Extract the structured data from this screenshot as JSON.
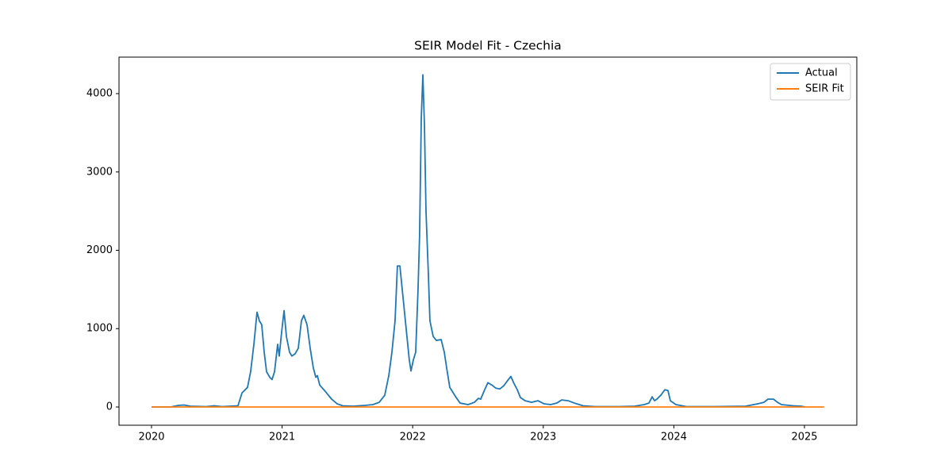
{
  "chart_data": {
    "type": "line",
    "title": "SEIR Model Fit - Czechia",
    "xlim": [
      2019.751,
      2025.401
    ],
    "xticks": [
      2020,
      2021,
      2022,
      2023,
      2024,
      2025
    ],
    "ylim": [
      -233,
      4466
    ],
    "yticks": [
      0,
      1000,
      2000,
      3000,
      4000
    ],
    "legend": "upper right",
    "series": [
      {
        "name": "Actual",
        "color": "#1f77b4",
        "x": [
          2020.0,
          2020.146,
          2020.207,
          2020.249,
          2020.298,
          2020.419,
          2020.48,
          2020.541,
          2020.662,
          2020.693,
          2020.735,
          2020.759,
          2020.784,
          2020.808,
          2020.826,
          2020.844,
          2020.863,
          2020.881,
          2020.905,
          2020.923,
          2020.942,
          2020.966,
          2020.978,
          2020.996,
          2021.015,
          2021.033,
          2021.057,
          2021.075,
          2021.1,
          2021.124,
          2021.148,
          2021.166,
          2021.191,
          2021.215,
          2021.239,
          2021.258,
          2021.27,
          2021.288,
          2021.33,
          2021.379,
          2021.422,
          2021.464,
          2021.543,
          2021.634,
          2021.695,
          2021.744,
          2021.786,
          2021.817,
          2021.841,
          2021.865,
          2021.883,
          2021.902,
          2021.92,
          2021.938,
          2021.956,
          2021.974,
          2021.987,
          2022.005,
          2022.023,
          2022.041,
          2022.053,
          2022.066,
          2022.078,
          2022.09,
          2022.102,
          2022.12,
          2022.132,
          2022.157,
          2022.181,
          2022.218,
          2022.242,
          2022.26,
          2022.284,
          2022.303,
          2022.333,
          2022.363,
          2022.424,
          2022.473,
          2022.503,
          2022.521,
          2022.546,
          2022.576,
          2022.606,
          2022.637,
          2022.667,
          2022.697,
          2022.728,
          2022.752,
          2022.776,
          2022.801,
          2022.825,
          2022.861,
          2022.91,
          2022.959,
          2023.007,
          2023.056,
          2023.104,
          2023.141,
          2023.19,
          2023.238,
          2023.305,
          2023.396,
          2023.578,
          2023.7,
          2023.773,
          2023.809,
          2023.834,
          2023.852,
          2023.87,
          2023.9,
          2023.931,
          2023.955,
          2023.973,
          2024.016,
          2024.095,
          2024.307,
          2024.55,
          2024.642,
          2024.69,
          2024.721,
          2024.763,
          2024.793,
          2024.824,
          2024.915,
          2024.976,
          2025.006
        ],
        "values": [
          0,
          0,
          20,
          25,
          10,
          5,
          15,
          5,
          15,
          180,
          250,
          450,
          800,
          1210,
          1100,
          1050,
          700,
          450,
          380,
          350,
          450,
          800,
          650,
          950,
          1230,
          900,
          700,
          650,
          680,
          750,
          1100,
          1170,
          1050,
          750,
          500,
          380,
          400,
          280,
          200,
          100,
          40,
          15,
          10,
          20,
          30,
          60,
          150,
          400,
          700,
          1100,
          1800,
          1800,
          1500,
          1200,
          900,
          600,
          460,
          600,
          700,
          1500,
          2200,
          3700,
          4240,
          3600,
          2500,
          1700,
          1100,
          900,
          850,
          860,
          700,
          500,
          250,
          200,
          120,
          50,
          30,
          60,
          110,
          100,
          200,
          310,
          280,
          240,
          230,
          270,
          340,
          390,
          300,
          220,
          120,
          80,
          60,
          80,
          40,
          30,
          50,
          90,
          80,
          50,
          15,
          5,
          5,
          10,
          30,
          50,
          130,
          80,
          100,
          150,
          220,
          210,
          80,
          30,
          5,
          5,
          10,
          40,
          60,
          100,
          100,
          60,
          30,
          15,
          10,
          0
        ]
      },
      {
        "name": "SEIR Fit",
        "color": "#ff7f0e",
        "x": [
          2020.0,
          2025.15
        ],
        "values": [
          0,
          0
        ]
      }
    ]
  }
}
